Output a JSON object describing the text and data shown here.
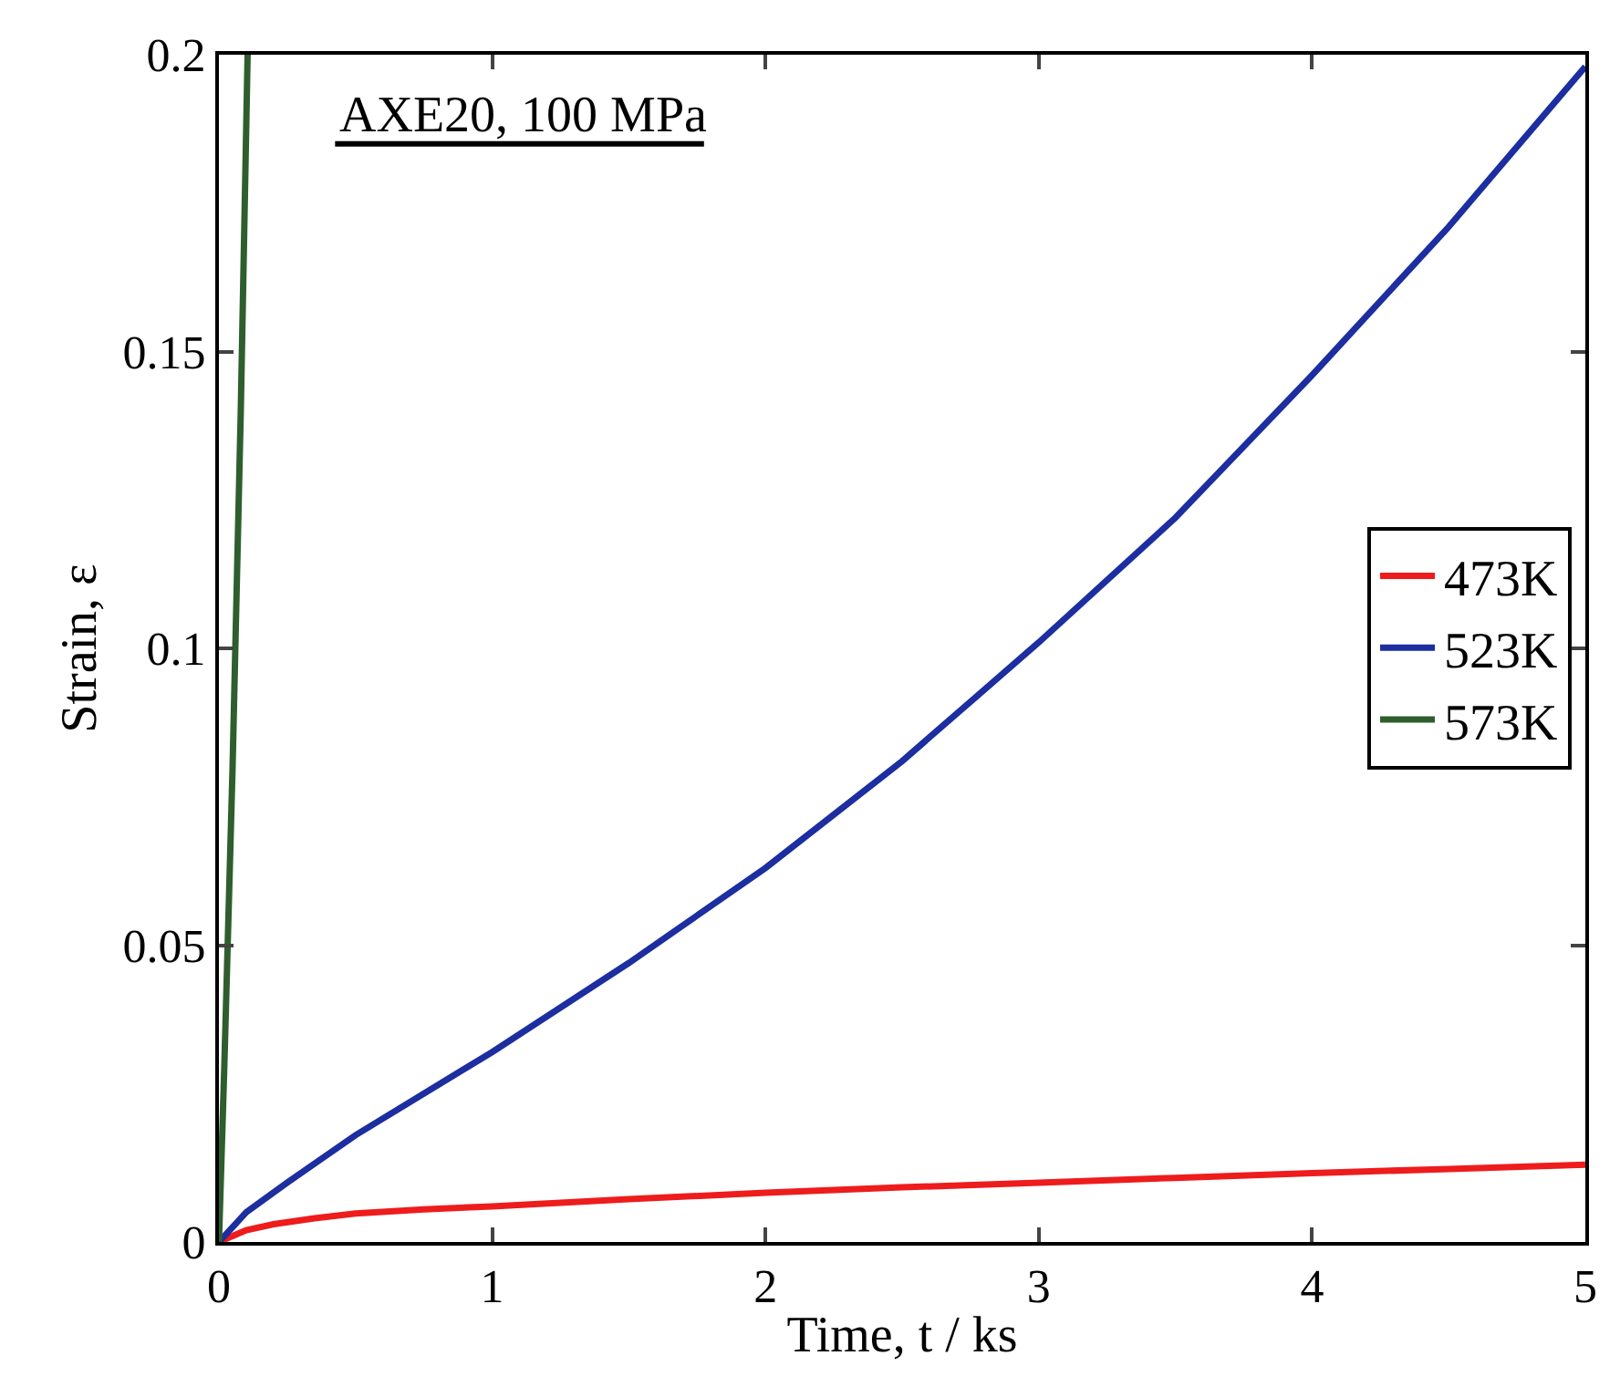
{
  "chart_data": {
    "type": "line",
    "xlabel": "Time, t / ks",
    "ylabel": "Strain, ε",
    "annotations": [
      {
        "text": "AXE20, 100 MPa"
      }
    ],
    "xlim": [
      0,
      5
    ],
    "ylim": [
      0,
      0.2
    ],
    "xticks": [
      0,
      1,
      2,
      3,
      4,
      5
    ],
    "yticks": [
      0,
      0.05,
      0.1,
      0.15,
      0.2
    ],
    "legend": "right",
    "marker": "none",
    "line_style": "solid",
    "series": [
      {
        "name": "473K",
        "color": "#ee1c1c",
        "x": [
          0,
          0.1,
          0.2,
          0.35,
          0.5,
          0.75,
          1,
          1.5,
          2,
          2.5,
          3,
          3.5,
          4,
          4.5,
          5
        ],
        "values": [
          0,
          0.002,
          0.003,
          0.004,
          0.0048,
          0.0055,
          0.006,
          0.0072,
          0.0083,
          0.0092,
          0.01,
          0.0108,
          0.0116,
          0.0123,
          0.013
        ]
      },
      {
        "name": "523K",
        "color": "#1c2ea0",
        "x": [
          0,
          0.1,
          0.25,
          0.5,
          0.75,
          1,
          1.5,
          2,
          2.5,
          3,
          3.5,
          4,
          4.5,
          5
        ],
        "values": [
          0,
          0.005,
          0.01,
          0.018,
          0.025,
          0.032,
          0.047,
          0.063,
          0.081,
          0.101,
          0.122,
          0.146,
          0.171,
          0.198
        ]
      },
      {
        "name": "573K",
        "color": "#2e5e2e",
        "x": [
          0,
          0.02,
          0.05,
          0.08,
          0.105
        ],
        "values": [
          0,
          0.03,
          0.08,
          0.14,
          0.2
        ]
      }
    ]
  }
}
